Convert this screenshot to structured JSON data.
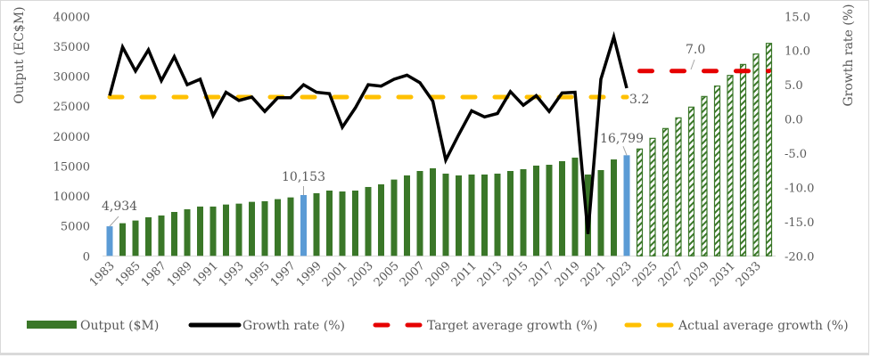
{
  "chart_data": {
    "type": "bar+line",
    "title": "",
    "ylabel": "Output (EC$M)",
    "y2label": "Growth rate (%)",
    "ylim": [
      0,
      40000
    ],
    "y2lim": [
      -20,
      15
    ],
    "yticks": [
      "0",
      "5000",
      "10000",
      "15000",
      "20000",
      "25000",
      "30000",
      "35000",
      "40000"
    ],
    "y2ticks": [
      "-20.0",
      "-15.0",
      "-10.0",
      "-5.0",
      "0.0",
      "5.0",
      "10.0",
      "15.0"
    ],
    "x": [
      1983,
      1984,
      1985,
      1986,
      1987,
      1988,
      1989,
      1990,
      1991,
      1992,
      1993,
      1994,
      1995,
      1996,
      1997,
      1998,
      1999,
      2000,
      2001,
      2002,
      2003,
      2004,
      2005,
      2006,
      2007,
      2008,
      2009,
      2010,
      2011,
      2012,
      2013,
      2014,
      2015,
      2016,
      2017,
      2018,
      2019,
      2020,
      2021,
      2022,
      2023,
      2024,
      2025,
      2026,
      2027,
      2028,
      2029,
      2030,
      2031,
      2032,
      2033,
      2034
    ],
    "xtick_labels": [
      "1983",
      "1985",
      "1987",
      "1989",
      "1991",
      "1993",
      "1995",
      "1997",
      "1999",
      "2001",
      "2003",
      "2005",
      "2007",
      "2009",
      "2011",
      "2013",
      "2015",
      "2017",
      "2019",
      "2021",
      "2023",
      "2025",
      "2027",
      "2029",
      "2031",
      "2033"
    ],
    "grid": false,
    "legend_position": "bottom",
    "series": [
      {
        "name": "Output ($M)",
        "type": "bar",
        "axis": "left",
        "color": "#3a7728",
        "highlight_color": "#5b9bd5",
        "values": [
          4934,
          5450,
          5900,
          6440,
          6740,
          7330,
          7780,
          8230,
          8230,
          8570,
          8720,
          9020,
          9120,
          9470,
          9760,
          10153,
          10460,
          10900,
          10750,
          10900,
          11500,
          11940,
          12740,
          13430,
          14170,
          14620,
          13730,
          13430,
          13580,
          13580,
          13730,
          14170,
          14470,
          15070,
          15210,
          15810,
          16400,
          13580,
          14320,
          16100,
          16799,
          17840,
          19620,
          21260,
          23040,
          24830,
          26610,
          28350,
          30130,
          31960,
          33700,
          35480
        ],
        "highlighted_years": [
          1983,
          1998,
          2023
        ],
        "projected_from": 2024
      },
      {
        "name": "Growth rate (%)",
        "type": "line",
        "axis": "right",
        "color": "#000000",
        "values": [
          3.4,
          10.5,
          7.0,
          10.1,
          5.6,
          9.1,
          5.0,
          5.8,
          0.5,
          3.9,
          2.7,
          3.2,
          1.1,
          3.1,
          3.1,
          5.0,
          3.9,
          3.7,
          -1.2,
          1.6,
          5.0,
          4.8,
          5.8,
          6.4,
          5.3,
          2.6,
          -6.0,
          -2.3,
          1.2,
          0.3,
          0.8,
          4.0,
          2.0,
          3.4,
          1.1,
          3.8,
          3.9,
          -16.8,
          5.8,
          12.0,
          4.5,
          null,
          null,
          null,
          null,
          null,
          null,
          null,
          null,
          null,
          null,
          null
        ]
      },
      {
        "name": "Target average growth (%)",
        "type": "line",
        "style": "dashed",
        "axis": "right",
        "color": "#e60000",
        "value": 7.0,
        "from": 2024,
        "to": 2034
      },
      {
        "name": "Actual average growth (%)",
        "type": "line",
        "style": "dashed",
        "axis": "right",
        "color": "#ffc000",
        "value": 3.2,
        "from": 1983,
        "to": 2023
      }
    ],
    "annotations": [
      "4,934",
      "10,153",
      "16,799",
      "3.2",
      "7.0"
    ]
  }
}
